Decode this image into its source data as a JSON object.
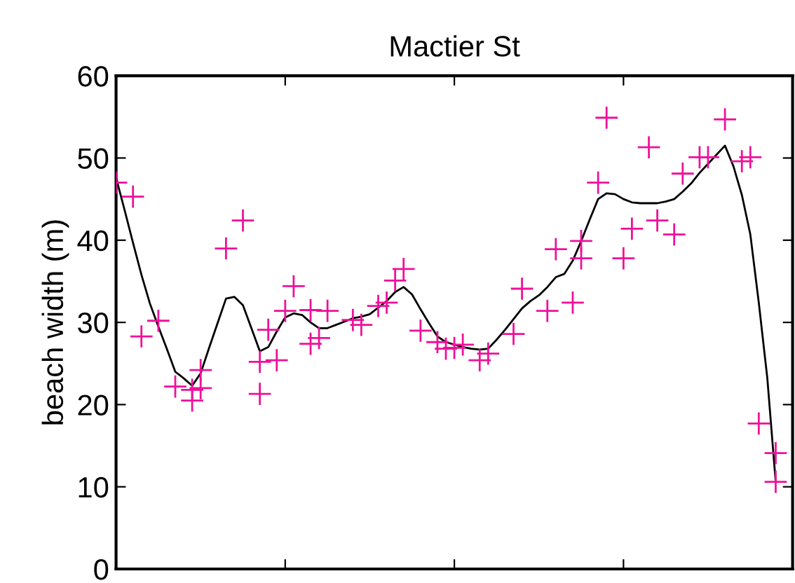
{
  "chart_data": {
    "type": "scatter",
    "title": "Mactier St",
    "ylabel": "beach width (m)",
    "categories": [
      null,
      null,
      null,
      null,
      null,
      null,
      null,
      null,
      null,
      null,
      null,
      null,
      null,
      null,
      null,
      null,
      null,
      null,
      null,
      null,
      null,
      null,
      null,
      null,
      null,
      null,
      null,
      null,
      null,
      null,
      null,
      null,
      null,
      null,
      null,
      null,
      null,
      null,
      null,
      null,
      null,
      null,
      null,
      null,
      null,
      null,
      null,
      null,
      null,
      null,
      null,
      null,
      null,
      null,
      null,
      null,
      null,
      null,
      null,
      null,
      null,
      null,
      null,
      null,
      null,
      null,
      null,
      null,
      null,
      null,
      null,
      null,
      null,
      null,
      null,
      null,
      null,
      null,
      null,
      null,
      null
    ],
    "ylim": [
      0,
      60
    ],
    "yticks": [
      0,
      10,
      20,
      30,
      40,
      50,
      60
    ],
    "tick_labels": "y",
    "marker": "cross",
    "series": [
      {
        "color": "#ee1199",
        "values": [
          47.0,
          null,
          45.3,
          28.3,
          null,
          30.2,
          null,
          22.2,
          null,
          20.5,
          24.2,
          null,
          null,
          39.0,
          null,
          42.4,
          null,
          21.3,
          29.1,
          25.4,
          31.4,
          34.4,
          null,
          31.5,
          28.1,
          31.4,
          null,
          null,
          30.3,
          29.7,
          null,
          32.0,
          32.4,
          35.1,
          36.5,
          null,
          29.0,
          null,
          27.6,
          26.8,
          26.9,
          27.3,
          null,
          25.4,
          26.2,
          null,
          null,
          28.6,
          34.1,
          null,
          null,
          31.4,
          38.9,
          null,
          32.4,
          39.9,
          null,
          47.0,
          54.9,
          null,
          37.8,
          41.4,
          null,
          51.3,
          42.4,
          null,
          40.7,
          48.1,
          null,
          50.1,
          50.1,
          null,
          54.7,
          null,
          49.6,
          50.1,
          17.7,
          null,
          14.1,
          null,
          null
        ]
      },
      {
        "color": "#ee1199",
        "values": [
          null,
          null,
          null,
          null,
          null,
          null,
          null,
          null,
          null,
          21.8,
          22.0,
          null,
          null,
          null,
          null,
          null,
          null,
          25.2,
          null,
          null,
          null,
          null,
          null,
          27.4,
          null,
          null,
          null,
          null,
          null,
          null,
          null,
          null,
          null,
          null,
          null,
          null,
          null,
          null,
          null,
          null,
          null,
          null,
          null,
          null,
          null,
          null,
          null,
          null,
          null,
          null,
          null,
          null,
          null,
          null,
          null,
          37.8,
          null,
          null,
          null,
          null,
          null,
          null,
          null,
          null,
          null,
          null,
          null,
          null,
          null,
          null,
          null,
          null,
          null,
          null,
          null,
          null,
          null,
          null,
          10.6,
          null,
          null
        ]
      },
      {
        "type": "line",
        "color": "#000000",
        "marker": "none",
        "line_style": "solid",
        "values": [
          47.6,
          43.7,
          39.7,
          35.8,
          32.3,
          29.5,
          26.8,
          24.0,
          23.2,
          22.3,
          23.8,
          26.9,
          29.9,
          32.9,
          33.1,
          32.1,
          29.3,
          26.5,
          27.0,
          28.9,
          30.6,
          31.1,
          30.9,
          30.0,
          29.3,
          29.3,
          29.7,
          30.1,
          30.5,
          30.7,
          31.0,
          31.8,
          32.6,
          33.7,
          34.3,
          33.4,
          31.6,
          29.9,
          28.3,
          27.6,
          27.3,
          27.0,
          26.8,
          26.7,
          26.8,
          27.9,
          29.1,
          30.4,
          31.7,
          32.6,
          33.3,
          34.3,
          35.5,
          35.9,
          37.5,
          39.9,
          42.5,
          45.0,
          45.7,
          45.6,
          45.0,
          44.6,
          44.5,
          44.5,
          44.5,
          44.7,
          45.0,
          45.9,
          46.9,
          48.2,
          49.3,
          50.4,
          51.5,
          49.0,
          45.5,
          40.7,
          32.4,
          23.3,
          10.6,
          null,
          null
        ]
      }
    ]
  }
}
